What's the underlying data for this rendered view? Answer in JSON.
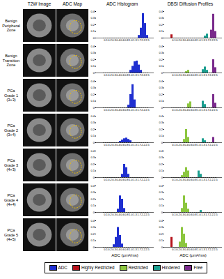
{
  "column_headers": [
    "T2W Image",
    "ADC Map",
    "ADC Histogram",
    "DBSI Diffusion Profiles"
  ],
  "row_labels": [
    "Benign\nPeripheral\nZone",
    "Benign\nTransition\nZone",
    "PCa\nGrade 1\n(3+3)",
    "PCa\nGrade 2\n(3+4)",
    "PCa\nGrade 3\n(4+3)",
    "PCa\nGrade 4\n(4+4)",
    "PCa\nGrade 5\n(4+5)"
  ],
  "chart_data": [
    {
      "type": "bar",
      "categories": [
        null,
        "0.1",
        null,
        "0.2",
        null,
        "0.3",
        null,
        "0.4",
        null,
        "0.6",
        null,
        "0.8",
        null,
        "1.0",
        null,
        "1.3",
        null,
        "1.7",
        null,
        "2.2",
        null,
        "2.5"
      ],
      "series": [
        {
          "name": "ADC",
          "color": "#1f2fd0",
          "values": [
            0,
            0,
            0,
            0,
            0,
            0,
            0,
            0,
            0,
            0,
            0,
            0,
            0,
            0,
            0,
            0,
            0,
            0.04,
            0.15,
            0.37,
            0.22,
            0.04
          ]
        }
      ],
      "ylim": [
        0,
        0.4
      ],
      "yticks": [
        0,
        0.1,
        0.2,
        0.3,
        0.4
      ]
    },
    {
      "type": "bar",
      "categories": [
        null,
        "0.1",
        null,
        "0.2",
        null,
        "0.3",
        null,
        "0.4",
        null,
        "0.6",
        null,
        "0.8",
        null,
        "1.0",
        null,
        "1.3",
        null,
        "1.7",
        null,
        "2.2",
        null,
        "2.5"
      ],
      "series": [
        {
          "name": "Highly Restricted",
          "color": "#b5121b",
          "values": [
            0.05,
            0,
            0,
            0,
            0,
            0,
            0,
            0,
            0,
            0,
            0,
            0,
            0,
            0,
            0,
            0,
            0,
            0,
            0,
            0,
            0,
            0
          ]
        },
        {
          "name": "Restricted",
          "color": "#8cc63f",
          "values": [
            0,
            0,
            0,
            0,
            0,
            0,
            0,
            0,
            0,
            0,
            0,
            0,
            0,
            0,
            0,
            0,
            0,
            0,
            0,
            0,
            0,
            0
          ]
        },
        {
          "name": "Hindered",
          "color": "#1b9e8f",
          "values": [
            0,
            0,
            0,
            0,
            0,
            0,
            0,
            0,
            0,
            0,
            0,
            0,
            0,
            0,
            0,
            0,
            0.03,
            0.06,
            0,
            0,
            0,
            0
          ]
        },
        {
          "name": "Free",
          "color": "#7a2a8c",
          "values": [
            0,
            0,
            0,
            0,
            0,
            0,
            0,
            0,
            0,
            0,
            0,
            0,
            0,
            0,
            0,
            0,
            0,
            0,
            0,
            0.12,
            0.36,
            0.1
          ]
        }
      ],
      "ylim": [
        0,
        0.4
      ],
      "yticks": [
        0,
        0.1,
        0.2,
        0.3,
        0.4
      ]
    },
    {
      "type": "bar",
      "categories": [
        null,
        "0.1",
        null,
        "0.2",
        null,
        "0.3",
        null,
        "0.4",
        null,
        "0.6",
        null,
        "0.8",
        null,
        "1.0",
        null,
        "1.3",
        null,
        "1.7",
        null,
        "2.2",
        null,
        "2.5"
      ],
      "series": [
        {
          "name": "ADC",
          "color": "#1f2fd0",
          "values": [
            0,
            0,
            0,
            0,
            0,
            0,
            0,
            0,
            0,
            0,
            0,
            0,
            0,
            0.04,
            0.1,
            0.17,
            0.18,
            0.12,
            0.04,
            0,
            0,
            0
          ]
        }
      ],
      "ylim": [
        0,
        0.4
      ],
      "yticks": [
        0,
        0.1,
        0.2,
        0.3,
        0.4
      ]
    },
    {
      "type": "bar",
      "categories": [
        null,
        "0.1",
        null,
        "0.2",
        null,
        "0.3",
        null,
        "0.4",
        null,
        "0.6",
        null,
        "0.8",
        null,
        "1.0",
        null,
        "1.3",
        null,
        "1.7",
        null,
        "2.2",
        null,
        "2.5"
      ],
      "series": [
        {
          "name": "Restricted",
          "color": "#8cc63f",
          "values": [
            0,
            0,
            0,
            0,
            0,
            0,
            0,
            0.02,
            0.04,
            0,
            0,
            0,
            0,
            0,
            0,
            0,
            0,
            0,
            0,
            0,
            0,
            0
          ]
        },
        {
          "name": "Hindered",
          "color": "#1b9e8f",
          "values": [
            0,
            0,
            0,
            0,
            0,
            0,
            0,
            0,
            0,
            0,
            0,
            0,
            0,
            0,
            0,
            0.05,
            0.09,
            0.04,
            0,
            0,
            0,
            0
          ]
        },
        {
          "name": "Free",
          "color": "#7a2a8c",
          "values": [
            0,
            0,
            0,
            0,
            0,
            0,
            0,
            0,
            0,
            0,
            0,
            0,
            0,
            0,
            0,
            0,
            0,
            0,
            0,
            0,
            0.2,
            0.08
          ]
        }
      ],
      "ylim": [
        0,
        0.4
      ],
      "yticks": [
        0,
        0.1,
        0.2,
        0.3,
        0.4
      ]
    },
    {
      "type": "bar",
      "categories": [
        null,
        "0.1",
        null,
        "0.2",
        null,
        "0.3",
        null,
        "0.4",
        null,
        "0.6",
        null,
        "0.8",
        null,
        "1.0",
        null,
        "1.3",
        null,
        "1.7",
        null,
        "2.2",
        null,
        "2.5"
      ],
      "series": [
        {
          "name": "ADC",
          "color": "#1f2fd0",
          "values": [
            0,
            0,
            0,
            0,
            0,
            0,
            0,
            0,
            0,
            0,
            0,
            0,
            0.04,
            0.2,
            0.35,
            0.12,
            0,
            0,
            0,
            0,
            0,
            0
          ]
        }
      ],
      "ylim": [
        0,
        0.4
      ],
      "yticks": [
        0,
        0.1,
        0.2,
        0.3,
        0.4
      ]
    },
    {
      "type": "bar",
      "categories": [
        null,
        "0.1",
        null,
        "0.2",
        null,
        "0.3",
        null,
        "0.4",
        null,
        "0.6",
        null,
        "0.8",
        null,
        "1.0",
        null,
        "1.3",
        null,
        "1.7",
        null,
        "2.2",
        null,
        "2.5"
      ],
      "series": [
        {
          "name": "Restricted",
          "color": "#8cc63f",
          "values": [
            0,
            0,
            0,
            0,
            0,
            0,
            0,
            0,
            0.06,
            0.09,
            0,
            0,
            0,
            0,
            0,
            0,
            0,
            0,
            0,
            0,
            0,
            0
          ]
        },
        {
          "name": "Hindered",
          "color": "#1b9e8f",
          "values": [
            0,
            0,
            0,
            0,
            0,
            0,
            0,
            0,
            0,
            0,
            0,
            0,
            0,
            0,
            0,
            0.1,
            0.05,
            0,
            0,
            0,
            0,
            0
          ]
        },
        {
          "name": "Free",
          "color": "#7a2a8c",
          "values": [
            0,
            0,
            0,
            0,
            0,
            0,
            0,
            0,
            0,
            0,
            0,
            0,
            0,
            0,
            0,
            0,
            0,
            0,
            0,
            0,
            0.2,
            0.07
          ]
        }
      ],
      "ylim": [
        0,
        0.4
      ],
      "yticks": [
        0,
        0.1,
        0.2,
        0.3,
        0.4
      ]
    },
    {
      "type": "bar",
      "categories": [
        null,
        "0.1",
        null,
        "0.2",
        null,
        "0.3",
        null,
        "0.4",
        null,
        "0.6",
        null,
        "0.8",
        null,
        "1.0",
        null,
        "1.3",
        null,
        "1.7",
        null,
        "2.2",
        null,
        "2.5"
      ],
      "series": [
        {
          "name": "ADC",
          "color": "#1f2fd0",
          "values": [
            0,
            0,
            0,
            0,
            0,
            0,
            0,
            0,
            0.02,
            0.04,
            0.06,
            0.07,
            0.05,
            0.03,
            0,
            0,
            0,
            0,
            0,
            0,
            0,
            0
          ]
        }
      ],
      "ylim": [
        0,
        0.4
      ],
      "yticks": [
        0,
        0.1,
        0.2,
        0.3,
        0.4
      ]
    },
    {
      "type": "bar",
      "categories": [
        null,
        "0.1",
        null,
        "0.2",
        null,
        "0.3",
        null,
        "0.4",
        null,
        "0.6",
        null,
        "0.8",
        null,
        "1.0",
        null,
        "1.3",
        null,
        "1.7",
        null,
        "2.2",
        null,
        "2.5"
      ],
      "series": [
        {
          "name": "Restricted",
          "color": "#8cc63f",
          "values": [
            0,
            0,
            0,
            0,
            0,
            0,
            0.05,
            0.2,
            0.08,
            0,
            0,
            0,
            0,
            0,
            0,
            0,
            0,
            0,
            0,
            0,
            0,
            0
          ]
        },
        {
          "name": "Hindered",
          "color": "#1b9e8f",
          "values": [
            0,
            0,
            0,
            0,
            0,
            0,
            0,
            0,
            0,
            0,
            0,
            0,
            0,
            0,
            0,
            0.06,
            0.03,
            0,
            0,
            0,
            0,
            0
          ]
        },
        {
          "name": "Free",
          "color": "#7a2a8c",
          "values": [
            0,
            0,
            0,
            0,
            0,
            0,
            0,
            0,
            0,
            0,
            0,
            0,
            0,
            0,
            0,
            0,
            0,
            0,
            0,
            0,
            0.08,
            0
          ]
        }
      ],
      "ylim": [
        0,
        0.4
      ],
      "yticks": [
        0,
        0.1,
        0.2,
        0.3,
        0.4
      ]
    },
    {
      "type": "bar",
      "categories": [
        null,
        "0.1",
        null,
        "0.2",
        null,
        "0.3",
        null,
        "0.4",
        null,
        "0.6",
        null,
        "0.8",
        null,
        "1.0",
        null,
        "1.3",
        null,
        "1.7",
        null,
        "2.2",
        null,
        "2.5"
      ],
      "series": [
        {
          "name": "ADC",
          "color": "#1f2fd0",
          "values": [
            0,
            0,
            0,
            0,
            0,
            0,
            0,
            0,
            0,
            0.05,
            0.2,
            0.15,
            0.05,
            0,
            0,
            0,
            0,
            0,
            0,
            0,
            0,
            0
          ]
        }
      ],
      "ylim": [
        0,
        0.4
      ],
      "yticks": [
        0,
        0.1,
        0.2,
        0.3,
        0.4
      ]
    },
    {
      "type": "bar",
      "categories": [
        null,
        "0.1",
        null,
        "0.2",
        null,
        "0.3",
        null,
        "0.4",
        null,
        "0.6",
        null,
        "0.8",
        null,
        "1.0",
        null,
        "1.3",
        null,
        "1.7",
        null,
        "2.2",
        null,
        "2.5"
      ],
      "series": [
        {
          "name": "Restricted",
          "color": "#8cc63f",
          "values": [
            0,
            0,
            0,
            0,
            0,
            0.03,
            0.08,
            0.15,
            0.1,
            0,
            0,
            0,
            0,
            0,
            0,
            0,
            0,
            0,
            0,
            0,
            0,
            0
          ]
        },
        {
          "name": "Hindered",
          "color": "#1b9e8f",
          "values": [
            0,
            0,
            0,
            0,
            0,
            0,
            0,
            0,
            0,
            0,
            0,
            0,
            0,
            0.1,
            0.05,
            0,
            0,
            0,
            0,
            0,
            0,
            0
          ]
        }
      ],
      "ylim": [
        0,
        0.4
      ],
      "yticks": [
        0,
        0.1,
        0.2,
        0.3,
        0.4
      ]
    },
    {
      "type": "bar",
      "categories": [
        null,
        "0.1",
        null,
        "0.2",
        null,
        "0.3",
        null,
        "0.4",
        null,
        "0.6",
        null,
        "0.8",
        null,
        "1.0",
        null,
        "1.3",
        null,
        "1.7",
        null,
        "2.2",
        null,
        "2.5"
      ],
      "series": [
        {
          "name": "ADC",
          "color": "#1f2fd0",
          "values": [
            0,
            0,
            0,
            0,
            0,
            0,
            0,
            0.05,
            0.25,
            0.2,
            0.06,
            0,
            0,
            0,
            0,
            0,
            0,
            0,
            0,
            0,
            0,
            0
          ]
        }
      ],
      "ylim": [
        0,
        0.4
      ],
      "yticks": [
        0,
        0.1,
        0.2,
        0.3,
        0.4
      ]
    },
    {
      "type": "bar",
      "categories": [
        null,
        "0.1",
        null,
        "0.2",
        null,
        "0.3",
        null,
        "0.4",
        null,
        "0.6",
        null,
        "0.8",
        null,
        "1.0",
        null,
        "1.3",
        null,
        "1.7",
        null,
        "2.2",
        null,
        "2.5"
      ],
      "series": [
        {
          "name": "Restricted",
          "color": "#8cc63f",
          "values": [
            0,
            0,
            0,
            0,
            0,
            0.06,
            0.25,
            0.14,
            0.05,
            0,
            0,
            0,
            0,
            0,
            0,
            0,
            0,
            0,
            0,
            0,
            0,
            0
          ]
        },
        {
          "name": "Hindered",
          "color": "#1b9e8f",
          "values": [
            0,
            0,
            0,
            0,
            0,
            0,
            0,
            0,
            0,
            0,
            0,
            0,
            0,
            0,
            0.03,
            0,
            0,
            0,
            0,
            0,
            0,
            0
          ]
        }
      ],
      "ylim": [
        0,
        0.4
      ],
      "yticks": [
        0,
        0.1,
        0.2,
        0.3,
        0.4
      ]
    },
    {
      "type": "bar",
      "categories": [
        null,
        "0.1",
        null,
        "0.2",
        null,
        "0.3",
        null,
        "0.4",
        null,
        "0.6",
        null,
        "0.8",
        null,
        "1.0",
        null,
        "1.3",
        null,
        "1.7",
        null,
        "2.2",
        null,
        "2.5"
      ],
      "series": [
        {
          "name": "ADC",
          "color": "#1f2fd0",
          "values": [
            0,
            0,
            0,
            0,
            0,
            0.04,
            0.15,
            0.3,
            0.18,
            0.05,
            0,
            0,
            0,
            0,
            0,
            0,
            0,
            0,
            0,
            0,
            0,
            0
          ]
        }
      ],
      "ylim": [
        0,
        0.4
      ],
      "yticks": [
        0,
        0.1,
        0.2,
        0.3,
        0.4
      ],
      "xlabel": "ADC (μm²/ms)"
    },
    {
      "type": "bar",
      "categories": [
        null,
        "0.1",
        null,
        "0.2",
        null,
        "0.3",
        null,
        "0.4",
        null,
        "0.6",
        null,
        "0.8",
        null,
        "1.0",
        null,
        "1.3",
        null,
        "1.7",
        null,
        "2.2",
        null,
        "2.5"
      ],
      "series": [
        {
          "name": "Highly Restricted",
          "color": "#b5121b",
          "values": [
            0.15,
            0,
            0,
            0,
            0,
            0,
            0,
            0,
            0,
            0,
            0,
            0,
            0,
            0,
            0,
            0,
            0,
            0,
            0,
            0,
            0,
            0
          ]
        },
        {
          "name": "Restricted",
          "color": "#8cc63f",
          "values": [
            0,
            0,
            0,
            0,
            0.08,
            0.3,
            0.2,
            0.06,
            0,
            0,
            0,
            0,
            0,
            0,
            0,
            0,
            0,
            0,
            0,
            0,
            0,
            0
          ]
        }
      ],
      "ylim": [
        0,
        0.4
      ],
      "yticks": [
        0,
        0.1,
        0.2,
        0.3,
        0.4
      ],
      "xlabel": "ADC (μm²/ms)"
    }
  ]
}
